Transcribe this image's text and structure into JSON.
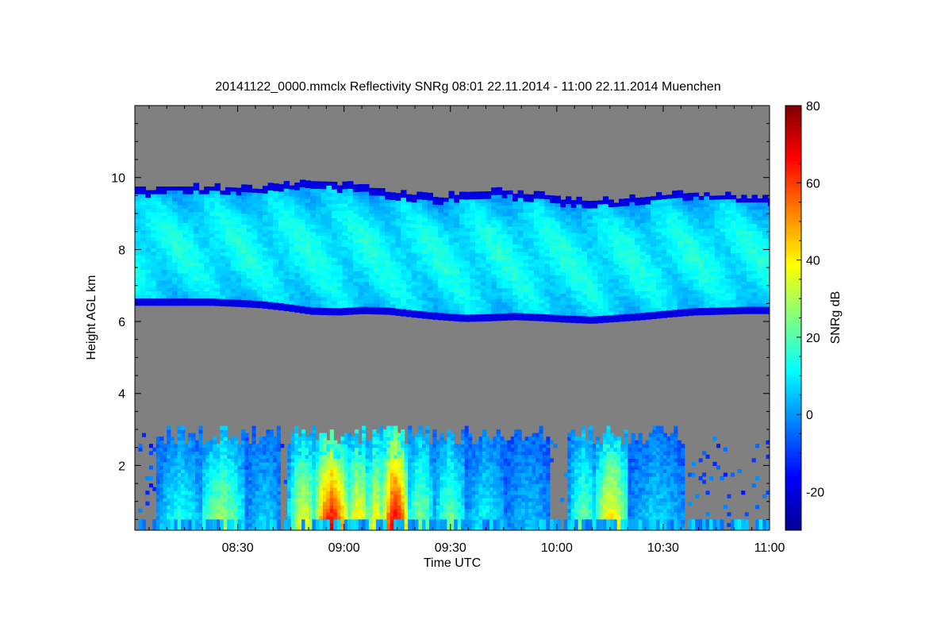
{
  "chart_data": {
    "type": "heatmap",
    "title": "20141122_0000.mmclx Reflectivity SNRg   08:01 22.11.2014 - 11:00 22.11.2014 Muenchen",
    "xlabel": "Time UTC",
    "ylabel": "Height AGL km",
    "colorbar_label": "SNRg dB",
    "x_range_minutes": [
      481,
      660
    ],
    "y_range_km": [
      0.2,
      12.0
    ],
    "x_ticks": [
      {
        "minute": 510,
        "label": "08:30"
      },
      {
        "minute": 540,
        "label": "09:00"
      },
      {
        "minute": 570,
        "label": "09:30"
      },
      {
        "minute": 600,
        "label": "10:00"
      },
      {
        "minute": 630,
        "label": "10:30"
      },
      {
        "minute": 660,
        "label": "11:00"
      }
    ],
    "y_ticks": [
      {
        "value": 2,
        "label": "2"
      },
      {
        "value": 4,
        "label": "4"
      },
      {
        "value": 6,
        "label": "6"
      },
      {
        "value": 8,
        "label": "8"
      },
      {
        "value": 10,
        "label": "10"
      }
    ],
    "colorbar_range_db": [
      -30,
      80
    ],
    "colorbar_ticks": [
      {
        "value": -20,
        "label": "-20"
      },
      {
        "value": 0,
        "label": "0"
      },
      {
        "value": 20,
        "label": "20"
      },
      {
        "value": 40,
        "label": "40"
      },
      {
        "value": 60,
        "label": "60"
      },
      {
        "value": 80,
        "label": "80"
      }
    ],
    "background_color": "#808080",
    "colormap": [
      "#00008f",
      "#0000ff",
      "#0080ff",
      "#00ffff",
      "#80ff80",
      "#ffff00",
      "#ff8000",
      "#ff0000",
      "#800000"
    ],
    "upper_cloud_layer": {
      "top_km": [
        9.65,
        9.62,
        9.7,
        9.72,
        9.68,
        9.75,
        9.8,
        9.85,
        9.8,
        9.7,
        9.6,
        9.5,
        9.45,
        9.55,
        9.62,
        9.55,
        9.5,
        9.35,
        9.3,
        9.35,
        9.4,
        9.5,
        9.55,
        9.48,
        9.42,
        9.4
      ],
      "base_km": [
        6.45,
        6.45,
        6.45,
        6.45,
        6.42,
        6.38,
        6.3,
        6.2,
        6.18,
        6.22,
        6.2,
        6.12,
        6.05,
        6.0,
        6.02,
        6.05,
        6.02,
        5.98,
        5.95,
        6.0,
        6.05,
        6.12,
        6.18,
        6.2,
        6.22,
        6.22
      ],
      "typical_snrg_db": 5
    },
    "lower_cloud_layer": {
      "top_km": 3.1,
      "fall_streaks": [
        {
          "start_min": 487,
          "end_min": 500,
          "peak_db": 15
        },
        {
          "start_min": 498,
          "end_min": 512,
          "peak_db": 30
        },
        {
          "start_min": 512,
          "end_min": 522,
          "peak_db": 8
        },
        {
          "start_min": 524,
          "end_min": 532,
          "peak_db": 40
        },
        {
          "start_min": 531,
          "end_min": 541,
          "peak_db": 70
        },
        {
          "start_min": 540,
          "end_min": 547,
          "peak_db": 45
        },
        {
          "start_min": 546,
          "end_min": 551,
          "peak_db": 42
        },
        {
          "start_min": 550,
          "end_min": 558,
          "peak_db": 72
        },
        {
          "start_min": 557,
          "end_min": 565,
          "peak_db": 28
        },
        {
          "start_min": 565,
          "end_min": 574,
          "peak_db": 25
        },
        {
          "start_min": 574,
          "end_min": 585,
          "peak_db": 12
        },
        {
          "start_min": 585,
          "end_min": 598,
          "peak_db": 5
        },
        {
          "start_min": 603,
          "end_min": 611,
          "peak_db": 25
        },
        {
          "start_min": 610,
          "end_min": 620,
          "peak_db": 45
        },
        {
          "start_min": 620,
          "end_min": 636,
          "peak_db": 8
        }
      ]
    }
  }
}
